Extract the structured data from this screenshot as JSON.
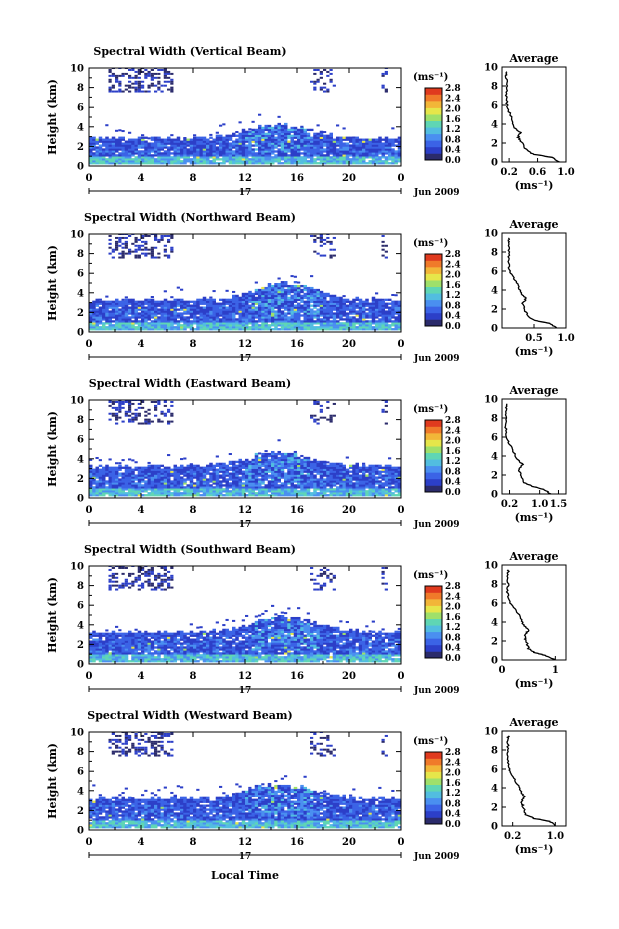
{
  "figure": {
    "xlabel": "Local Time",
    "date_day": "17",
    "date_rest": "Jun 2009",
    "colorbar_unit": "(ms⁻¹)",
    "colorbar_ticks": [
      "2.8",
      "2.4",
      "2.0",
      "1.6",
      "1.2",
      "0.8",
      "0.4",
      "0.0"
    ],
    "avg_title": "Average",
    "avg_xlabel": "(ms⁻¹)",
    "ylabel": "Height (km)",
    "y_ticks": [
      "10",
      "8",
      "6",
      "4",
      "2",
      "0"
    ],
    "avg_y_ticks": [
      "10",
      "8",
      "6",
      "4",
      "2",
      "0"
    ],
    "x_ticks": [
      "0",
      "4",
      "8",
      "12",
      "16",
      "20",
      "0"
    ]
  },
  "colors": {
    "scale": [
      "#2b2b6b",
      "#2c3fc8",
      "#3b63e6",
      "#4a8ff0",
      "#52bde0",
      "#5fd6b4",
      "#9fe06a",
      "#e6e64a",
      "#f2b638",
      "#f07a2a",
      "#e03a1e"
    ]
  },
  "chart_data": [
    {
      "type": "heatmap",
      "title": "Spectral Width (Vertical Beam)",
      "xlim": [
        0,
        24
      ],
      "ylim": [
        0,
        10
      ],
      "colorbar_range": [
        0.0,
        2.8
      ],
      "layers": {
        "low_top_km": 2.8,
        "peak_top_km": 4.2,
        "peak_time_h": 14.5,
        "aloft_echo_km": [
          7.5,
          9.5
        ]
      },
      "average": {
        "ylim": [
          0,
          10
        ],
        "xlim": [
          0.1,
          1.0
        ],
        "x_ticks": [
          "0.2",
          "0.6",
          "1.0"
        ],
        "values": [
          [
            0.9,
            0
          ],
          [
            0.8,
            0.5
          ],
          [
            0.55,
            0.8
          ],
          [
            0.45,
            1.2
          ],
          [
            0.38,
            2
          ],
          [
            0.33,
            2.6
          ],
          [
            0.36,
            3.1
          ],
          [
            0.28,
            3.6
          ],
          [
            0.24,
            4.5
          ],
          [
            0.2,
            5.3
          ],
          [
            0.17,
            6
          ],
          [
            0.16,
            7
          ],
          [
            0.17,
            8
          ],
          [
            0.16,
            9
          ],
          [
            0.17,
            9.5
          ]
        ]
      }
    },
    {
      "type": "heatmap",
      "title": "Spectral Width (Northward Beam)",
      "xlim": [
        0,
        24
      ],
      "ylim": [
        0,
        10
      ],
      "colorbar_range": [
        0.0,
        2.8
      ],
      "layers": {
        "low_top_km": 3.2,
        "peak_top_km": 5.0,
        "peak_time_h": 15,
        "aloft_echo_km": [
          7.5,
          9.5
        ]
      },
      "average": {
        "ylim": [
          0,
          10
        ],
        "xlim": [
          0.0,
          1.0
        ],
        "x_ticks": [
          "0.5",
          "1.0"
        ],
        "values": [
          [
            0.85,
            0
          ],
          [
            0.75,
            0.5
          ],
          [
            0.5,
            0.8
          ],
          [
            0.4,
            1.3
          ],
          [
            0.35,
            2
          ],
          [
            0.32,
            2.6
          ],
          [
            0.38,
            3.1
          ],
          [
            0.3,
            3.7
          ],
          [
            0.25,
            4.5
          ],
          [
            0.18,
            5.3
          ],
          [
            0.12,
            6
          ],
          [
            0.1,
            7
          ],
          [
            0.11,
            8
          ],
          [
            0.1,
            9
          ],
          [
            0.11,
            9.5
          ]
        ]
      }
    },
    {
      "type": "heatmap",
      "title": "Spectral Width (Eastward Beam)",
      "xlim": [
        0,
        24
      ],
      "ylim": [
        0,
        10
      ],
      "colorbar_range": [
        0.0,
        2.8
      ],
      "layers": {
        "low_top_km": 3.2,
        "peak_top_km": 4.6,
        "peak_time_h": 14.5,
        "aloft_echo_km": [
          7.5,
          9.5
        ]
      },
      "average": {
        "ylim": [
          0,
          10
        ],
        "xlim": [
          0.0,
          1.7
        ],
        "x_ticks": [
          "0.2",
          "1.0",
          "1.5"
        ],
        "values": [
          [
            1.3,
            0
          ],
          [
            1.1,
            0.5
          ],
          [
            0.8,
            0.8
          ],
          [
            0.6,
            1.2
          ],
          [
            0.5,
            2
          ],
          [
            0.45,
            2.6
          ],
          [
            0.55,
            3.1
          ],
          [
            0.4,
            3.7
          ],
          [
            0.3,
            4.5
          ],
          [
            0.2,
            5.3
          ],
          [
            0.12,
            6
          ],
          [
            0.1,
            7
          ],
          [
            0.12,
            8
          ],
          [
            0.1,
            9
          ],
          [
            0.12,
            9.5
          ]
        ]
      }
    },
    {
      "type": "heatmap",
      "title": "Spectral Width (Southward Beam)",
      "xlim": [
        0,
        24
      ],
      "ylim": [
        0,
        10
      ],
      "colorbar_range": [
        0.0,
        2.8
      ],
      "layers": {
        "low_top_km": 3.2,
        "peak_top_km": 4.8,
        "peak_time_h": 15,
        "aloft_echo_km": [
          7.5,
          9.5
        ]
      },
      "average": {
        "ylim": [
          0,
          10
        ],
        "xlim": [
          0,
          1.2
        ],
        "x_ticks": [
          "0",
          "1"
        ],
        "values": [
          [
            1.0,
            0
          ],
          [
            0.8,
            0.5
          ],
          [
            0.6,
            0.8
          ],
          [
            0.5,
            1.2
          ],
          [
            0.45,
            2
          ],
          [
            0.42,
            2.6
          ],
          [
            0.5,
            3.1
          ],
          [
            0.4,
            3.7
          ],
          [
            0.35,
            4.5
          ],
          [
            0.25,
            5.3
          ],
          [
            0.15,
            6
          ],
          [
            0.1,
            7
          ],
          [
            0.12,
            8
          ],
          [
            0.1,
            9
          ],
          [
            0.12,
            9.5
          ]
        ]
      }
    },
    {
      "type": "heatmap",
      "title": "Spectral Width (Westward Beam)",
      "xlim": [
        0,
        24
      ],
      "ylim": [
        0,
        10
      ],
      "colorbar_range": [
        0.0,
        2.8
      ],
      "layers": {
        "low_top_km": 3.2,
        "peak_top_km": 4.6,
        "peak_time_h": 14.5,
        "aloft_echo_km": [
          7.5,
          9.5
        ]
      },
      "average": {
        "ylim": [
          0,
          10
        ],
        "xlim": [
          0.0,
          1.2
        ],
        "x_ticks": [
          "0.2",
          "1.0"
        ],
        "values": [
          [
            1.0,
            0
          ],
          [
            0.9,
            0.5
          ],
          [
            0.6,
            0.8
          ],
          [
            0.45,
            1.2
          ],
          [
            0.4,
            2
          ],
          [
            0.36,
            2.6
          ],
          [
            0.42,
            3.1
          ],
          [
            0.34,
            3.7
          ],
          [
            0.28,
            4.5
          ],
          [
            0.2,
            5.3
          ],
          [
            0.13,
            6
          ],
          [
            0.1,
            7
          ],
          [
            0.12,
            8
          ],
          [
            0.1,
            9
          ],
          [
            0.12,
            9.5
          ]
        ]
      }
    }
  ]
}
